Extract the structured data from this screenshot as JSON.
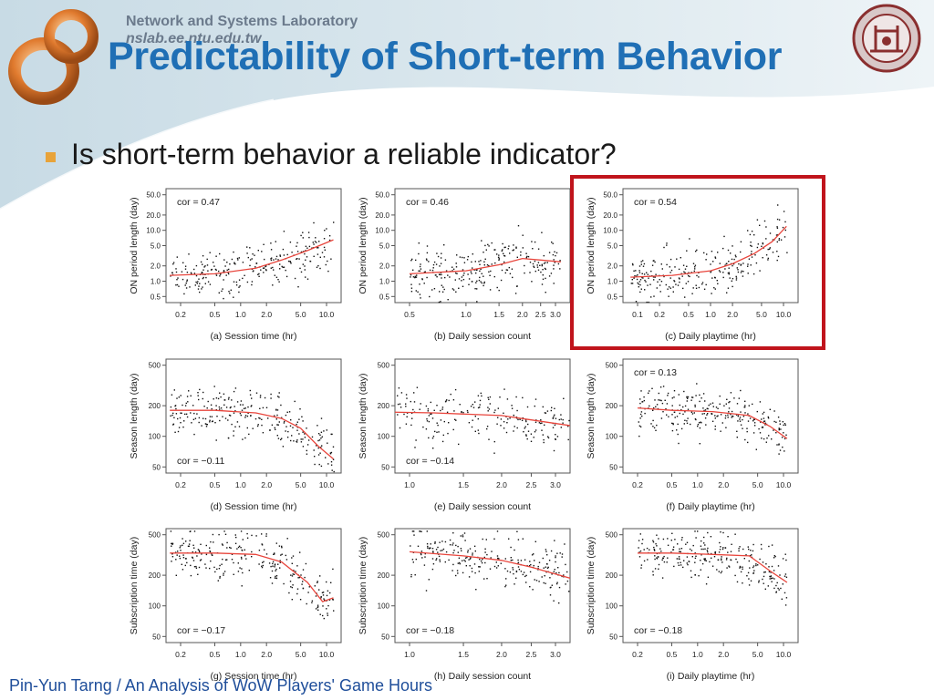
{
  "header": {
    "lab_name": "Network and Systems Laboratory",
    "lab_url": "nslab.ee.ntu.edu.tw",
    "title": "Predictability of Short-term Behavior"
  },
  "bullet": "Is short-term behavior a reliable indicator?",
  "footer": {
    "author": "Pin-Yun Tarng",
    "rest": " / An Analysis of WoW Players' Game Hours"
  },
  "colors": {
    "title": "#1f6fb5",
    "bullet_marker": "#e8a33a",
    "highlight_box": "#c0141c",
    "fit_line": "#e8453c"
  },
  "chart_data": [
    {
      "type": "scatter",
      "panel": "a",
      "caption": "(a) Session time (hr)",
      "ylabel": "ON period length (day)",
      "cor_label": "cor = 0.47",
      "x_scale": "log",
      "y_scale": "log",
      "xticks": [
        "0.2",
        "0.5",
        "1.0",
        "2.0",
        "5.0",
        "10.0"
      ],
      "yticks": [
        "0.5",
        "1.0",
        "2.0",
        "5.0",
        "10.0",
        "20.0",
        "50.0"
      ],
      "fit": [
        [
          0.15,
          1.3
        ],
        [
          0.5,
          1.4
        ],
        [
          1.5,
          1.8
        ],
        [
          3,
          2.6
        ],
        [
          6,
          4
        ],
        [
          12,
          6.5
        ]
      ]
    },
    {
      "type": "scatter",
      "panel": "b",
      "caption": "(b) Daily session count",
      "ylabel": "ON period length (day)",
      "cor_label": "cor = 0.46",
      "x_scale": "log",
      "y_scale": "log",
      "xticks": [
        "0.5",
        "1.0",
        "1.5",
        "2.0",
        "2.5",
        "3.0"
      ],
      "yticks": [
        "0.5",
        "1.0",
        "2.0",
        "5.0",
        "10.0",
        "20.0",
        "50.0"
      ],
      "fit": [
        [
          0.5,
          1.4
        ],
        [
          1.0,
          1.6
        ],
        [
          1.5,
          2.1
        ],
        [
          2.0,
          2.8
        ],
        [
          2.5,
          2.6
        ],
        [
          3.2,
          2.4
        ]
      ]
    },
    {
      "type": "scatter",
      "panel": "c",
      "caption": "(c) Daily playtime (hr)",
      "ylabel": "ON period length (day)",
      "cor_label": "cor = 0.54",
      "highlighted": true,
      "x_scale": "log",
      "y_scale": "log",
      "xticks": [
        "0.1",
        "0.2",
        "0.5",
        "1.0",
        "2.0",
        "5.0",
        "10.0"
      ],
      "yticks": [
        "0.5",
        "1.0",
        "2.0",
        "5.0",
        "10.0",
        "20.0",
        "50.0"
      ],
      "fit": [
        [
          0.08,
          1.2
        ],
        [
          0.3,
          1.3
        ],
        [
          1,
          1.6
        ],
        [
          2,
          2.2
        ],
        [
          4,
          3.5
        ],
        [
          7,
          6
        ],
        [
          11,
          12
        ]
      ]
    },
    {
      "type": "scatter",
      "panel": "d",
      "caption": "(d) Session time (hr)",
      "ylabel": "Season length (day)",
      "cor_label": "cor = −0.11",
      "x_scale": "log",
      "y_scale": "log",
      "xticks": [
        "0.2",
        "0.5",
        "1.0",
        "2.0",
        "5.0",
        "10.0"
      ],
      "yticks": [
        "50",
        "100",
        "200",
        "500"
      ],
      "fit": [
        [
          0.15,
          180
        ],
        [
          0.5,
          180
        ],
        [
          1.5,
          170
        ],
        [
          3,
          150
        ],
        [
          5,
          120
        ],
        [
          8,
          80
        ],
        [
          12,
          60
        ]
      ]
    },
    {
      "type": "scatter",
      "panel": "e",
      "caption": "(e) Daily session count",
      "ylabel": "Season length (day)",
      "cor_label": "cor = −0.14",
      "x_scale": "log",
      "y_scale": "log",
      "xticks": [
        "1.0",
        "1.5",
        "2.0",
        "2.5",
        "3.0"
      ],
      "yticks": [
        "50",
        "100",
        "200",
        "500"
      ],
      "fit": [
        [
          0.7,
          175
        ],
        [
          1.2,
          170
        ],
        [
          2,
          160
        ],
        [
          2.5,
          145
        ],
        [
          3.5,
          125
        ]
      ]
    },
    {
      "type": "scatter",
      "panel": "f",
      "caption": "(f) Daily playtime (hr)",
      "ylabel": "Season length (day)",
      "cor_label": "cor = 0.13",
      "x_scale": "log",
      "y_scale": "log",
      "xticks": [
        "0.2",
        "0.5",
        "1.0",
        "2.0",
        "5.0",
        "10.0"
      ],
      "yticks": [
        "50",
        "100",
        "200",
        "500"
      ],
      "fit": [
        [
          0.2,
          190
        ],
        [
          0.5,
          180
        ],
        [
          1.5,
          175
        ],
        [
          4,
          160
        ],
        [
          7,
          125
        ],
        [
          11,
          95
        ]
      ]
    },
    {
      "type": "scatter",
      "panel": "g",
      "caption": "(g) Session time (hr)",
      "ylabel": "Subscription time (day)",
      "cor_label": "cor = −0.17",
      "x_scale": "log",
      "y_scale": "log",
      "xticks": [
        "0.2",
        "0.5",
        "1.0",
        "2.0",
        "5.0",
        "10.0"
      ],
      "yticks": [
        "50",
        "100",
        "200",
        "500"
      ],
      "fit": [
        [
          0.15,
          330
        ],
        [
          0.5,
          330
        ],
        [
          1.5,
          320
        ],
        [
          3,
          270
        ],
        [
          6,
          170
        ],
        [
          9,
          110
        ],
        [
          12,
          120
        ]
      ]
    },
    {
      "type": "scatter",
      "panel": "h",
      "caption": "(h) Daily session count",
      "ylabel": "Subscription time (day)",
      "cor_label": "cor = −0.18",
      "x_scale": "log",
      "y_scale": "log",
      "xticks": [
        "1.0",
        "1.5",
        "2.0",
        "2.5",
        "3.0"
      ],
      "yticks": [
        "50",
        "100",
        "200",
        "500"
      ],
      "fit": [
        [
          1.0,
          340
        ],
        [
          1.5,
          310
        ],
        [
          2,
          280
        ],
        [
          2.5,
          240
        ],
        [
          3.5,
          180
        ]
      ]
    },
    {
      "type": "scatter",
      "panel": "i",
      "caption": "(i) Daily playtime (hr)",
      "ylabel": "Subscription time (day)",
      "cor_label": "cor = −0.18",
      "x_scale": "log",
      "y_scale": "log",
      "xticks": [
        "0.2",
        "0.5",
        "1.0",
        "2.0",
        "5.0",
        "10.0"
      ],
      "yticks": [
        "50",
        "100",
        "200",
        "500"
      ],
      "fit": [
        [
          0.2,
          330
        ],
        [
          0.5,
          330
        ],
        [
          1.5,
          320
        ],
        [
          4,
          310
        ],
        [
          7,
          220
        ],
        [
          11,
          170
        ]
      ]
    }
  ]
}
